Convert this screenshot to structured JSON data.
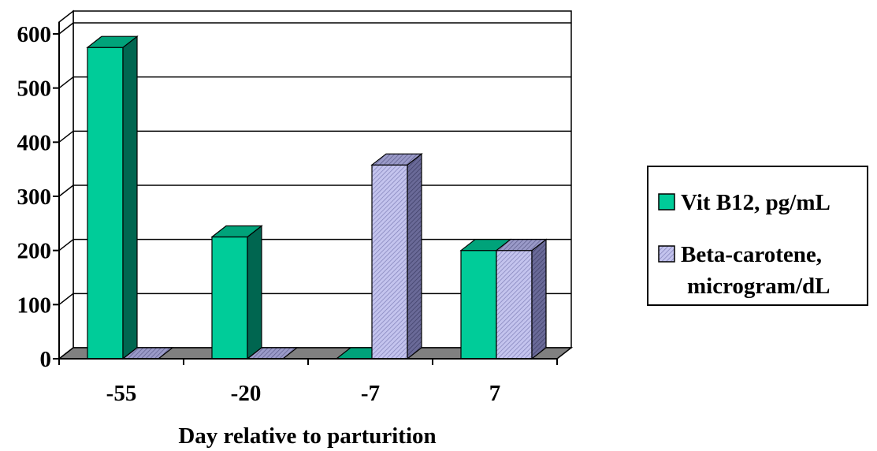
{
  "chart_data": {
    "type": "bar",
    "categories": [
      "-55",
      "-20",
      "-7",
      "7"
    ],
    "series": [
      {
        "name": "Vit B12, pg/mL",
        "values": [
          575,
          225,
          0,
          200
        ],
        "color": "#00cc99",
        "side_color": "#006650",
        "top_color": "#00a37a"
      },
      {
        "name": "Beta-carotene, microgram/dL",
        "values": [
          0,
          0,
          358,
          200
        ],
        "color": "#b8b8e8",
        "side_color": "#5c5c8a",
        "top_color": "#8a8ab8"
      }
    ],
    "xlabel": "Day relative to parturition",
    "ylabel": "",
    "ylim": [
      0,
      600
    ],
    "yticks": [
      0,
      100,
      200,
      300,
      400,
      500,
      600
    ],
    "grid": true,
    "legend_position": "right",
    "three_d": true
  }
}
